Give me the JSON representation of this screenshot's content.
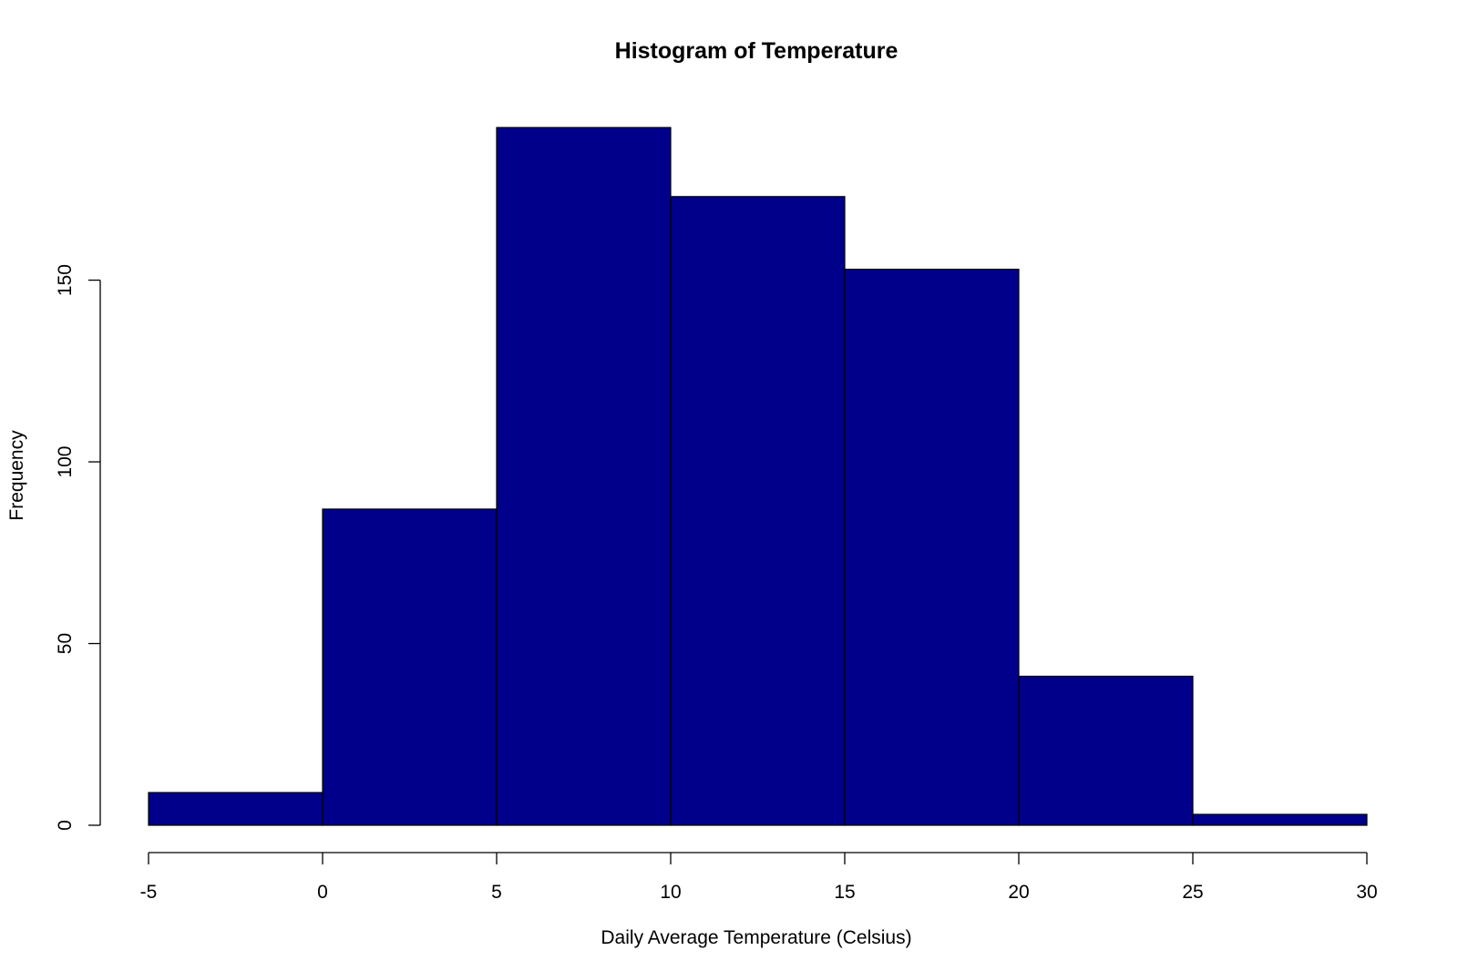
{
  "chart_data": {
    "type": "bar",
    "title": "Histogram of Temperature",
    "xlabel": "Daily Average Temperature (Celsius)",
    "ylabel": "Frequency",
    "bins": [
      {
        "from": -5,
        "to": 0,
        "value": 9
      },
      {
        "from": 0,
        "to": 5,
        "value": 87
      },
      {
        "from": 5,
        "to": 10,
        "value": 192
      },
      {
        "from": 10,
        "to": 15,
        "value": 173
      },
      {
        "from": 15,
        "to": 20,
        "value": 153
      },
      {
        "from": 20,
        "to": 25,
        "value": 41
      },
      {
        "from": 25,
        "to": 30,
        "value": 3
      }
    ],
    "xlim": [
      -5,
      30
    ],
    "ylim": [
      0,
      192
    ],
    "x_ticks": [
      "-5",
      "0",
      "5",
      "10",
      "15",
      "20",
      "25",
      "30"
    ],
    "y_ticks": [
      "0",
      "50",
      "100",
      "150"
    ],
    "grid": false,
    "bar_color": "#00008B"
  }
}
